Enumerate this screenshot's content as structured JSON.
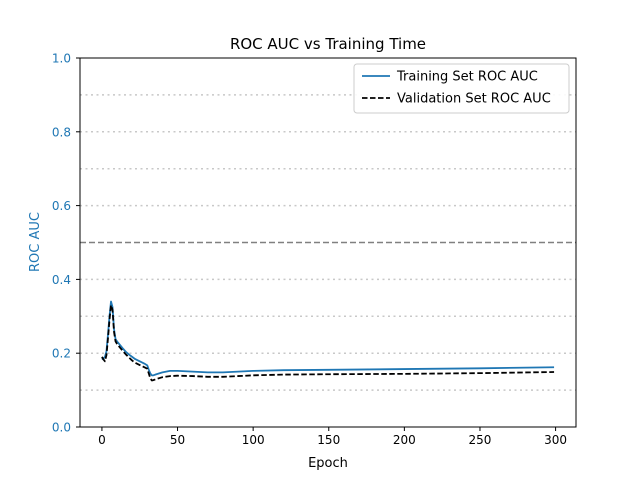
{
  "colors": {
    "training": "#1f77b4",
    "validation": "#000000",
    "reference_line": "#808080",
    "grid": "#c8c8c8",
    "ylabel": "#1f77b4",
    "ytick": "#1f77b4"
  },
  "chart_data": {
    "type": "line",
    "title": "ROC AUC vs Training Time",
    "xlabel": "Epoch",
    "ylabel": "ROC AUC",
    "xlim": [
      -14.5,
      313.5
    ],
    "ylim": [
      0.0,
      1.0
    ],
    "xticks": [
      0,
      50,
      100,
      150,
      200,
      250,
      300
    ],
    "yticks": [
      0.0,
      0.2,
      0.4,
      0.6,
      0.8,
      1.0
    ],
    "ygrid": [
      0.1,
      0.2,
      0.3,
      0.4,
      0.6,
      0.7,
      0.8,
      0.9
    ],
    "grid": "horizontal dotted",
    "reference_line": 0.5,
    "legend": {
      "placement": "top-right"
    },
    "series": [
      {
        "name": "Training Set ROC AUC",
        "style": "solid",
        "x": [
          0,
          1,
          2,
          3,
          4,
          5,
          6,
          7,
          8,
          9,
          10,
          12,
          14,
          16,
          18,
          20,
          22,
          25,
          28,
          30,
          31,
          32,
          33,
          34,
          36,
          40,
          45,
          50,
          60,
          70,
          80,
          90,
          100,
          120,
          150,
          200,
          250,
          299
        ],
        "y": [
          0.183,
          0.186,
          0.19,
          0.205,
          0.25,
          0.3,
          0.34,
          0.325,
          0.265,
          0.238,
          0.232,
          0.222,
          0.212,
          0.203,
          0.196,
          0.19,
          0.184,
          0.178,
          0.172,
          0.167,
          0.155,
          0.145,
          0.14,
          0.14,
          0.143,
          0.148,
          0.152,
          0.152,
          0.15,
          0.148,
          0.148,
          0.15,
          0.152,
          0.154,
          0.155,
          0.157,
          0.159,
          0.162
        ]
      },
      {
        "name": "Validation Set ROC AUC",
        "style": "dashed",
        "x": [
          0,
          1,
          2,
          3,
          4,
          5,
          6,
          7,
          8,
          9,
          10,
          12,
          14,
          16,
          18,
          20,
          22,
          25,
          28,
          30,
          31,
          32,
          33,
          34,
          36,
          40,
          45,
          50,
          60,
          70,
          80,
          90,
          100,
          120,
          150,
          200,
          250,
          299
        ],
        "y": [
          0.19,
          0.183,
          0.178,
          0.195,
          0.24,
          0.29,
          0.33,
          0.318,
          0.258,
          0.232,
          0.225,
          0.215,
          0.205,
          0.196,
          0.188,
          0.18,
          0.174,
          0.168,
          0.162,
          0.158,
          0.145,
          0.132,
          0.126,
          0.127,
          0.13,
          0.135,
          0.138,
          0.139,
          0.138,
          0.136,
          0.136,
          0.138,
          0.14,
          0.142,
          0.143,
          0.144,
          0.146,
          0.149
        ]
      }
    ]
  }
}
